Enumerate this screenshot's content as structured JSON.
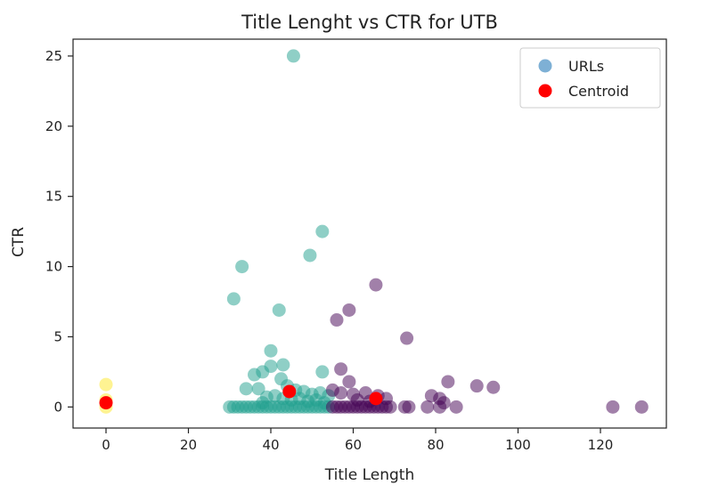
{
  "chart_data": {
    "type": "scatter",
    "title": "Title Lenght vs CTR for UTB",
    "xlabel": "Title Length",
    "ylabel": "CTR",
    "xlim": [
      -8,
      136
    ],
    "ylim": [
      -1.5,
      26.2
    ],
    "x_ticks": [
      0,
      20,
      40,
      60,
      80,
      100,
      120
    ],
    "y_ticks": [
      0,
      5,
      10,
      15,
      20,
      25
    ],
    "grid": false,
    "legend_position": "top-right",
    "legend": [
      {
        "label": "URLs",
        "color": "#7eb0d5"
      },
      {
        "label": "Centroid",
        "color": "#ff0000"
      }
    ],
    "series": [
      {
        "name": "URLs",
        "cluster_colors": [
          "#20a08d",
          "#440154",
          "#fde725"
        ],
        "points": [
          {
            "x": 45.5,
            "y": 25.0,
            "c": 0
          },
          {
            "x": 52.5,
            "y": 12.5,
            "c": 0
          },
          {
            "x": 49.5,
            "y": 10.8,
            "c": 0
          },
          {
            "x": 33,
            "y": 10.0,
            "c": 0
          },
          {
            "x": 31,
            "y": 7.7,
            "c": 0
          },
          {
            "x": 42,
            "y": 6.9,
            "c": 0
          },
          {
            "x": 40,
            "y": 4.0,
            "c": 0
          },
          {
            "x": 40,
            "y": 2.9,
            "c": 0
          },
          {
            "x": 43,
            "y": 3.0,
            "c": 0
          },
          {
            "x": 38,
            "y": 2.5,
            "c": 0
          },
          {
            "x": 36,
            "y": 2.3,
            "c": 0
          },
          {
            "x": 42.5,
            "y": 2.0,
            "c": 0
          },
          {
            "x": 52.5,
            "y": 2.5,
            "c": 0
          },
          {
            "x": 34,
            "y": 1.3,
            "c": 0
          },
          {
            "x": 37,
            "y": 1.3,
            "c": 0
          },
          {
            "x": 44,
            "y": 1.5,
            "c": 0
          },
          {
            "x": 46,
            "y": 1.2,
            "c": 0
          },
          {
            "x": 48,
            "y": 1.1,
            "c": 0
          },
          {
            "x": 50,
            "y": 0.9,
            "c": 0
          },
          {
            "x": 52,
            "y": 1.0,
            "c": 0
          },
          {
            "x": 54,
            "y": 0.8,
            "c": 0
          },
          {
            "x": 39,
            "y": 0.7,
            "c": 0
          },
          {
            "x": 41,
            "y": 0.8,
            "c": 0
          },
          {
            "x": 43,
            "y": 0.6,
            "c": 0
          },
          {
            "x": 45,
            "y": 0.5,
            "c": 0
          },
          {
            "x": 47,
            "y": 0.6,
            "c": 0
          },
          {
            "x": 49,
            "y": 0.4,
            "c": 0
          },
          {
            "x": 51,
            "y": 0.5,
            "c": 0
          },
          {
            "x": 53,
            "y": 0.3,
            "c": 0
          },
          {
            "x": 38,
            "y": 0.3,
            "c": 0
          },
          {
            "x": 30,
            "y": 0.0,
            "c": 0
          },
          {
            "x": 31,
            "y": 0.0,
            "c": 0
          },
          {
            "x": 32,
            "y": 0.0,
            "c": 0
          },
          {
            "x": 33,
            "y": 0.0,
            "c": 0
          },
          {
            "x": 34,
            "y": 0.0,
            "c": 0
          },
          {
            "x": 35,
            "y": 0.0,
            "c": 0
          },
          {
            "x": 36,
            "y": 0.0,
            "c": 0
          },
          {
            "x": 37,
            "y": 0.0,
            "c": 0
          },
          {
            "x": 38,
            "y": 0.0,
            "c": 0
          },
          {
            "x": 39,
            "y": 0.0,
            "c": 0
          },
          {
            "x": 40,
            "y": 0.0,
            "c": 0
          },
          {
            "x": 41,
            "y": 0.0,
            "c": 0
          },
          {
            "x": 42,
            "y": 0.0,
            "c": 0
          },
          {
            "x": 43,
            "y": 0.0,
            "c": 0
          },
          {
            "x": 44,
            "y": 0.0,
            "c": 0
          },
          {
            "x": 45,
            "y": 0.0,
            "c": 0
          },
          {
            "x": 46,
            "y": 0.0,
            "c": 0
          },
          {
            "x": 47,
            "y": 0.0,
            "c": 0
          },
          {
            "x": 48,
            "y": 0.0,
            "c": 0
          },
          {
            "x": 49,
            "y": 0.0,
            "c": 0
          },
          {
            "x": 50,
            "y": 0.0,
            "c": 0
          },
          {
            "x": 51,
            "y": 0.0,
            "c": 0
          },
          {
            "x": 52,
            "y": 0.0,
            "c": 0
          },
          {
            "x": 53,
            "y": 0.0,
            "c": 0
          },
          {
            "x": 54,
            "y": 0.0,
            "c": 0
          },
          {
            "x": 65.5,
            "y": 8.7,
            "c": 1
          },
          {
            "x": 59,
            "y": 6.9,
            "c": 1
          },
          {
            "x": 56,
            "y": 6.2,
            "c": 1
          },
          {
            "x": 73,
            "y": 4.9,
            "c": 1
          },
          {
            "x": 57,
            "y": 2.7,
            "c": 1
          },
          {
            "x": 59,
            "y": 1.8,
            "c": 1
          },
          {
            "x": 83,
            "y": 1.8,
            "c": 1
          },
          {
            "x": 90,
            "y": 1.5,
            "c": 1
          },
          {
            "x": 94,
            "y": 1.4,
            "c": 1
          },
          {
            "x": 55,
            "y": 1.2,
            "c": 1
          },
          {
            "x": 57,
            "y": 1.0,
            "c": 1
          },
          {
            "x": 60,
            "y": 0.9,
            "c": 1
          },
          {
            "x": 63,
            "y": 1.0,
            "c": 1
          },
          {
            "x": 66,
            "y": 0.8,
            "c": 1
          },
          {
            "x": 68,
            "y": 0.6,
            "c": 1
          },
          {
            "x": 61,
            "y": 0.5,
            "c": 1
          },
          {
            "x": 64,
            "y": 0.4,
            "c": 1
          },
          {
            "x": 79,
            "y": 0.8,
            "c": 1
          },
          {
            "x": 81,
            "y": 0.6,
            "c": 1
          },
          {
            "x": 82,
            "y": 0.3,
            "c": 1
          },
          {
            "x": 55,
            "y": 0.0,
            "c": 1
          },
          {
            "x": 56,
            "y": 0.0,
            "c": 1
          },
          {
            "x": 57,
            "y": 0.0,
            "c": 1
          },
          {
            "x": 58,
            "y": 0.0,
            "c": 1
          },
          {
            "x": 59,
            "y": 0.0,
            "c": 1
          },
          {
            "x": 60,
            "y": 0.0,
            "c": 1
          },
          {
            "x": 61,
            "y": 0.0,
            "c": 1
          },
          {
            "x": 62,
            "y": 0.0,
            "c": 1
          },
          {
            "x": 63,
            "y": 0.0,
            "c": 1
          },
          {
            "x": 64,
            "y": 0.0,
            "c": 1
          },
          {
            "x": 65,
            "y": 0.0,
            "c": 1
          },
          {
            "x": 66,
            "y": 0.0,
            "c": 1
          },
          {
            "x": 67,
            "y": 0.0,
            "c": 1
          },
          {
            "x": 68,
            "y": 0.0,
            "c": 1
          },
          {
            "x": 69,
            "y": 0.0,
            "c": 1
          },
          {
            "x": 72.5,
            "y": 0.0,
            "c": 1
          },
          {
            "x": 73.5,
            "y": 0.0,
            "c": 1
          },
          {
            "x": 78,
            "y": 0.0,
            "c": 1
          },
          {
            "x": 81,
            "y": 0.0,
            "c": 1
          },
          {
            "x": 85,
            "y": 0.0,
            "c": 1
          },
          {
            "x": 123,
            "y": 0.0,
            "c": 1
          },
          {
            "x": 130,
            "y": 0.0,
            "c": 1
          },
          {
            "x": 0,
            "y": 1.6,
            "c": 2
          },
          {
            "x": 0,
            "y": 0.5,
            "c": 2
          },
          {
            "x": 0,
            "y": 0.0,
            "c": 2
          }
        ]
      },
      {
        "name": "Centroid",
        "color": "#ff0000",
        "points": [
          {
            "x": 0,
            "y": 0.3
          },
          {
            "x": 44.5,
            "y": 1.1
          },
          {
            "x": 65.5,
            "y": 0.6
          }
        ]
      }
    ]
  }
}
